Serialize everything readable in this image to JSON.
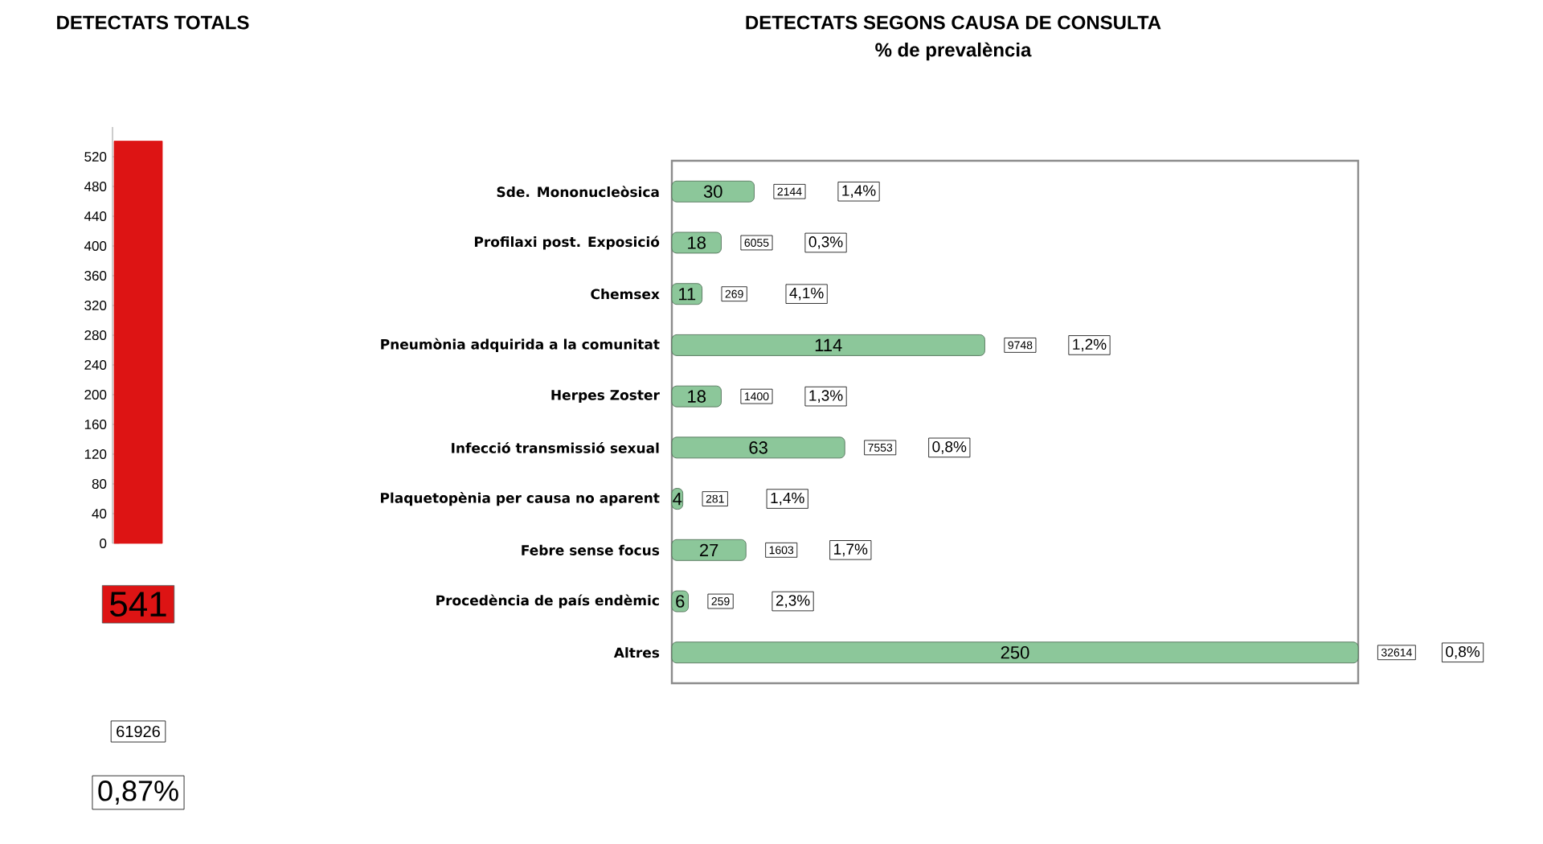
{
  "chart_data": [
    {
      "type": "bar",
      "title": "DETECTATS TOTALS",
      "categories": [
        null
      ],
      "values": [
        541
      ],
      "color": "#dd1414",
      "ylim": [
        0,
        560
      ],
      "yticks": [
        0,
        40,
        80,
        120,
        160,
        200,
        240,
        280,
        320,
        360,
        400,
        440,
        480,
        520
      ],
      "data_labels": true,
      "tick_labels": "y",
      "annotations": [
        "61926",
        "0,87%"
      ]
    },
    {
      "type": "bar",
      "orientation": "horizontal",
      "title": "DETECTATS SEGONS CAUSA DE CONSULTA",
      "subtitle": "% de prevalència",
      "color": "#8cc79a",
      "data_labels": true,
      "tick_labels": "y",
      "categories": [
        "Sde. Mononucleòsica",
        "Profilaxi post. Exposició",
        "Chemsex",
        "Pneumònia adquirida a la comunitat",
        "Herpes Zoster",
        "Infecció transmissió sexual",
        "Plaquetopènia per causa no aparent",
        "Febre sense focus",
        "Procedència de país endèmic",
        "Altres"
      ],
      "values": [
        30,
        18,
        11,
        114,
        18,
        63,
        4,
        27,
        6,
        250
      ],
      "annotations": [
        "2144",
        "1,4%",
        "6055",
        "0,3%",
        "269",
        "4,1%",
        "9748",
        "1,2%",
        "1400",
        "1,3%",
        "7553",
        "0,8%",
        "281",
        "1,4%",
        "1603",
        "1,7%",
        "259",
        "2,3%",
        "32614",
        "0,8%"
      ]
    }
  ]
}
